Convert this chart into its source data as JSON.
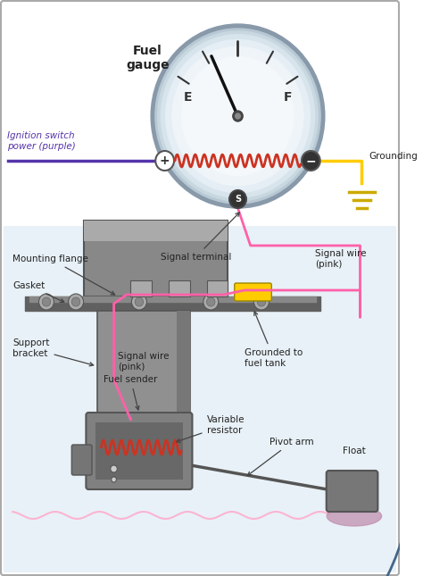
{
  "labels": {
    "fuel_gauge": "Fuel\ngauge",
    "ignition_switch": "Ignition switch\npower (purple)",
    "grounding": "Grounding",
    "signal_terminal": "Signal terminal",
    "mounting_flange": "Mounting flange",
    "gasket": "Gasket",
    "support_bracket": "Support\nbracket",
    "signal_wire_pink1": "Signal wire\n(pink)",
    "signal_wire_pink2": "Signal wire\n(pink)",
    "grounded_fuel_tank": "Grounded to\nfuel tank",
    "fuel_sender": "Fuel sender",
    "variable_resistor": "Variable\nresistor",
    "pivot_arm": "Pivot arm",
    "float_label": "Float"
  },
  "colors": {
    "purple_wire": "#5533aa",
    "pink_wire": "#ff60a8",
    "yellow_wire": "#ffcc00",
    "coil_color": "#cc3322",
    "ground_symbol": "#ccaa00",
    "arrow_color": "#446688",
    "text_color": "#222222",
    "water_bg": "#cce0ee",
    "water_line": "#ffaacc",
    "gauge_chrome_outer": "#aaaaaa",
    "gauge_chrome_inner": "#c8d4dc",
    "gauge_face_outer": "#d8e0e8",
    "gauge_face_inner": "#e8eef2",
    "gauge_face_center": "#f0f4f6",
    "needle_color": "#111111",
    "flange_color": "#808080",
    "bracket_color": "#909090",
    "sender_body": "#787878",
    "sender_dark": "#606060",
    "float_color": "#777777",
    "float_shadow": "#c090b0"
  }
}
